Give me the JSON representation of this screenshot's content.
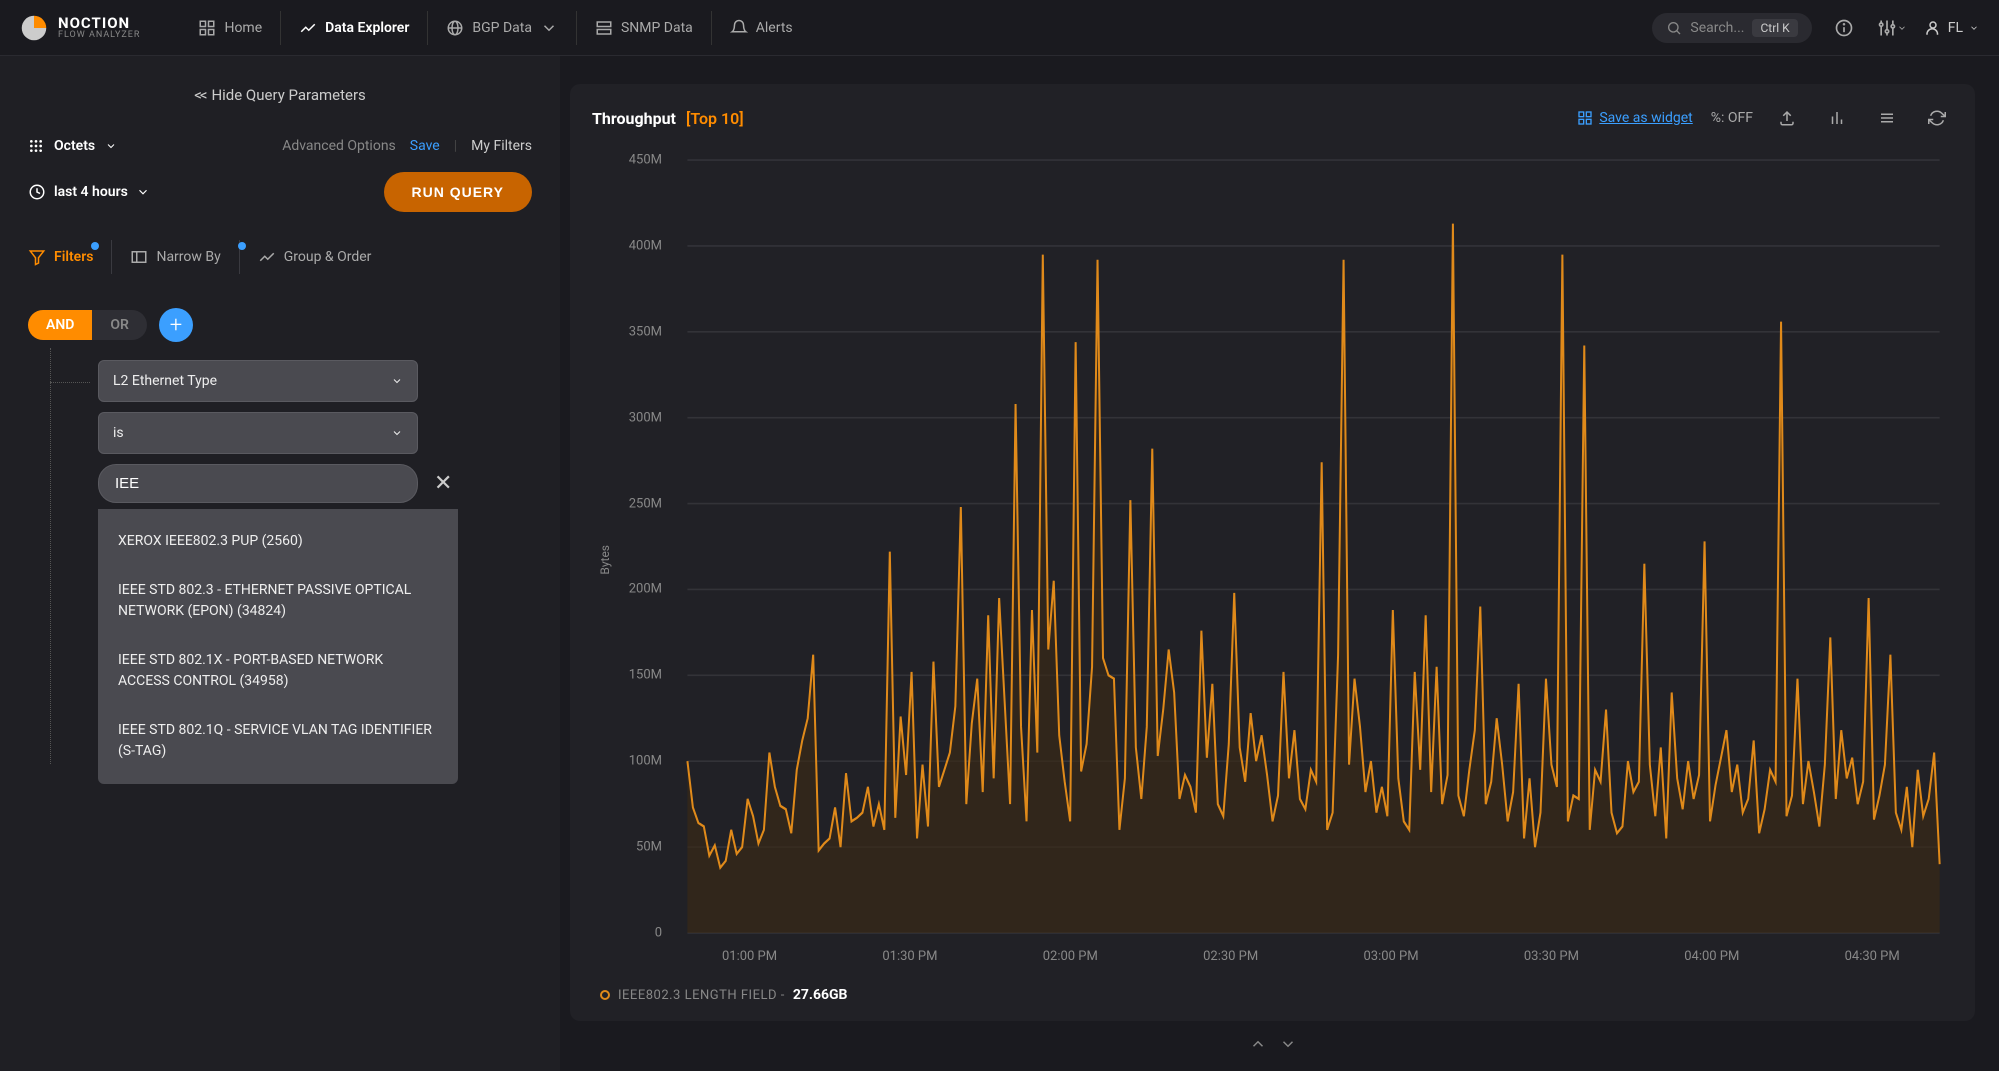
{
  "brand": {
    "title": "NOCTION",
    "subtitle": "FLOW ANALYZER"
  },
  "nav": {
    "home": "Home",
    "data_explorer": "Data Explorer",
    "bgp": "BGP Data",
    "snmp": "SNMP Data",
    "alerts": "Alerts"
  },
  "search": {
    "placeholder": "Search...",
    "kbd": "Ctrl K"
  },
  "user": "FL",
  "sidebar": {
    "hide": "Hide Query Parameters",
    "metric": "Octets",
    "adv": "Advanced Options",
    "save": "Save",
    "myfilters": "My Filters",
    "time": "last 4 hours",
    "run": "RUN QUERY",
    "tabs": {
      "filters": "Filters",
      "narrow": "Narrow By",
      "group": "Group & Order"
    },
    "logic": {
      "and": "AND",
      "or": "OR"
    },
    "filter": {
      "field": "L2 Ethernet Type",
      "op": "is",
      "value": "IEE",
      "options": [
        "XEROX IEEE802.3 PUP (2560)",
        "IEEE STD 802.3 - ETHERNET PASSIVE OPTICAL NETWORK (EPON) (34824)",
        "IEEE STD 802.1X - PORT-BASED NETWORK ACCESS CONTROL (34958)",
        "IEEE STD 802.1Q - SERVICE VLAN TAG IDENTIFIER (S-TAG)"
      ]
    }
  },
  "panel": {
    "title": "Throughput",
    "sub": "[Top 10]",
    "save_widget": "Save as widget",
    "pct": "%: OFF"
  },
  "chart": {
    "type": "area",
    "y_label": "Bytes",
    "ylim": [
      0,
      450
    ],
    "y_ticks": [
      0,
      50,
      100,
      150,
      200,
      250,
      300,
      350,
      400,
      450
    ],
    "y_tick_labels": [
      "0",
      "50M",
      "100M",
      "150M",
      "200M",
      "250M",
      "300M",
      "350M",
      "400M",
      "450M"
    ],
    "x_ticks": [
      0.062,
      0.187,
      0.312,
      0.437,
      0.562,
      0.687,
      0.812,
      0.937
    ],
    "x_tick_labels": [
      "01:00 PM",
      "01:30 PM",
      "02:00 PM",
      "02:30 PM",
      "03:00 PM",
      "03:30 PM",
      "04:00 PM",
      "04:30 PM"
    ],
    "line_color": "#e08a1a",
    "area_color": "#3a2a16",
    "area_opacity": 0.65,
    "grid_color": "#333338",
    "background": "#212126",
    "values": [
      100,
      73,
      64,
      62,
      45,
      51,
      38,
      42,
      60,
      46,
      50,
      78,
      68,
      52,
      60,
      105,
      85,
      74,
      72,
      58,
      95,
      112,
      125,
      162,
      48,
      52,
      55,
      73,
      50,
      93,
      65,
      67,
      70,
      85,
      62,
      75,
      60,
      222,
      67,
      126,
      92,
      152,
      55,
      98,
      62,
      158,
      85,
      95,
      105,
      132,
      248,
      75,
      122,
      148,
      82,
      185,
      90,
      195,
      135,
      75,
      308,
      120,
      65,
      188,
      105,
      395,
      165,
      205,
      115,
      88,
      65,
      344,
      94,
      110,
      155,
      392,
      160,
      150,
      148,
      60,
      90,
      252,
      108,
      78,
      120,
      282,
      103,
      130,
      165,
      140,
      78,
      92,
      85,
      70,
      176,
      102,
      145,
      75,
      68,
      110,
      198,
      108,
      88,
      128,
      100,
      115,
      92,
      65,
      80,
      152,
      90,
      118,
      78,
      72,
      95,
      88,
      274,
      60,
      70,
      162,
      392,
      98,
      148,
      120,
      82,
      100,
      70,
      85,
      68,
      188,
      90,
      65,
      60,
      152,
      95,
      185,
      82,
      155,
      75,
      92,
      413,
      80,
      68,
      95,
      118,
      190,
      75,
      88,
      125,
      98,
      65,
      82,
      145,
      55,
      90,
      50,
      70,
      148,
      98,
      85,
      395,
      65,
      80,
      78,
      342,
      60,
      95,
      88,
      130,
      70,
      58,
      62,
      100,
      82,
      88,
      215,
      98,
      68,
      108,
      55,
      140,
      90,
      72,
      100,
      78,
      92,
      228,
      65,
      86,
      102,
      118,
      82,
      98,
      70,
      78,
      112,
      58,
      72,
      95,
      88,
      356,
      68,
      80,
      148,
      75,
      100,
      82,
      62,
      98,
      172,
      78,
      118,
      90,
      102,
      75,
      88,
      195,
      66,
      80,
      98,
      162,
      70,
      60,
      85,
      50,
      95,
      68,
      78,
      105,
      40
    ]
  },
  "legend": {
    "label": "IEEE802.3 LENGTH FIELD -",
    "value": "27.66GB"
  }
}
